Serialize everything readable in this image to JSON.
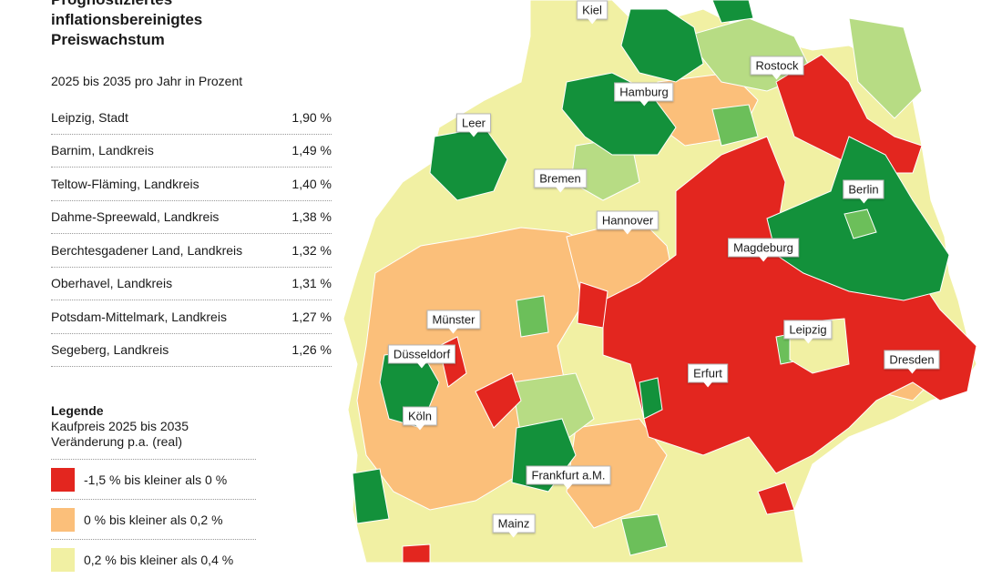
{
  "title_lines": [
    "Prognostiziertes",
    "inflationsbereinigtes",
    "Preiswachstum"
  ],
  "subtitle": "2025 bis 2035 pro Jahr in Prozent",
  "ranking": [
    {
      "name": "Leipzig",
      "type": ", Stadt",
      "value": "1,90 %"
    },
    {
      "name": "Barnim",
      "type": ", Landkreis",
      "value": "1,49 %"
    },
    {
      "name": "Teltow-Fläming",
      "type": ", Landkreis",
      "value": "1,40 %"
    },
    {
      "name": "Dahme-Spreewald",
      "type": ", Landkreis",
      "value": "1,38 %"
    },
    {
      "name": "Berchtesgadener Land",
      "type": ", Landkreis",
      "value": "1,32 %"
    },
    {
      "name": "Oberhavel",
      "type": ", Landkreis",
      "value": "1,31 %"
    },
    {
      "name": "Potsdam-Mittelmark",
      "type": ", Landkreis",
      "value": "1,27 %"
    },
    {
      "name": "Segeberg",
      "type": ", Landkreis",
      "value": "1,26 %"
    }
  ],
  "legend": {
    "title": "Legende",
    "line1": "Kaufpreis 2025 bis 2035",
    "line2": "Veränderung p.a. (real)",
    "items": [
      {
        "label": "-1,5 % bis kleiner als 0 %",
        "color": "#e3261f"
      },
      {
        "label": "0 % bis kleiner als 0,2 %",
        "color": "#fbbf7a"
      },
      {
        "label": "0,2 % bis kleiner als 0,4 %",
        "color": "#f1f0a3"
      }
    ]
  },
  "colors": {
    "red": "#e3261f",
    "orange": "#fbbf7a",
    "pale_yellow": "#f1f0a3",
    "light_green": "#b7dc84",
    "mid_green": "#6cbf5a",
    "dark_green": "#13913b"
  },
  "cities": [
    "Kiel",
    "Rostock",
    "Hamburg",
    "Leer",
    "Bremen",
    "Berlin",
    "Hannover",
    "Magdeburg",
    "Münster",
    "Leipzig",
    "Düsseldorf",
    "Dresden",
    "Erfurt",
    "Köln",
    "Frankfurt a.M.",
    "Mainz"
  ]
}
